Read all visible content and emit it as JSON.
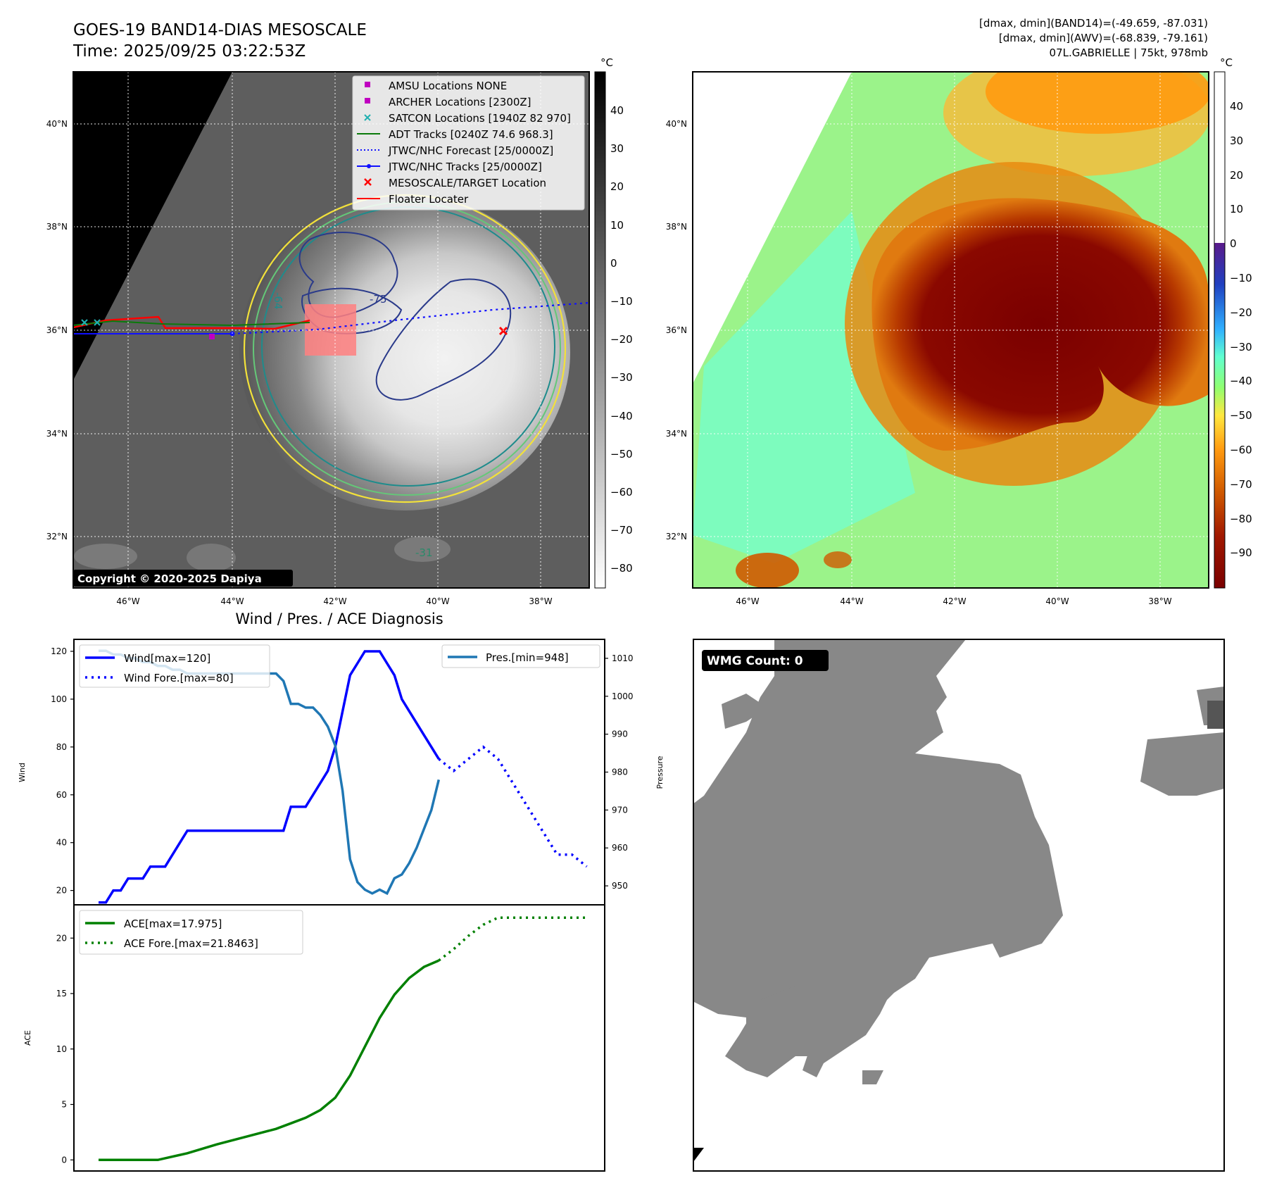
{
  "header": {
    "title_line1": "GOES-19 BAND14-DIAS MESOSCALE",
    "title_line2": "Time: 2025/09/25 03:22:53Z",
    "info_line1": "[dmax, dmin](BAND14)=(-49.659, -87.031)",
    "info_line2": "[dmax, dmin](AWV)=(-68.839, -79.161)",
    "info_line3": "07L.GABRIELLE | 75kt, 978mb"
  },
  "map": {
    "lat_labels": [
      "40°N",
      "38°N",
      "36°N",
      "34°N",
      "32°N"
    ],
    "lon_labels": [
      "46°W",
      "44°W",
      "42°W",
      "40°W",
      "38°W"
    ],
    "copyright": "Copyright © 2020-2025 Dapiya",
    "contour_labels": [
      "-64",
      "-75",
      "-31"
    ],
    "colorbar_unit": "°C",
    "colorbar1_ticks": [
      "40",
      "30",
      "20",
      "10",
      "0",
      "−10",
      "−20",
      "−30",
      "−40",
      "−50",
      "−60",
      "−70",
      "−80"
    ],
    "colorbar2_ticks": [
      "40",
      "30",
      "20",
      "10",
      "0",
      "−10",
      "−20",
      "−30",
      "−40",
      "−50",
      "−60",
      "−70",
      "−80",
      "−90"
    ],
    "legend": [
      {
        "label": "AMSU Locations NONE",
        "color": "#c000c0",
        "marker": "square"
      },
      {
        "label": "ARCHER Locations [2300Z]",
        "color": "#c000c0",
        "marker": "square"
      },
      {
        "label": "SATCON Locations [1940Z 82 970]",
        "color": "#20b0b0",
        "marker": "x"
      },
      {
        "label": "ADT Tracks [0240Z 74.6 968.3]",
        "color": "#0a7a0a",
        "marker": "line"
      },
      {
        "label": "JTWC/NHC Forecast [25/0000Z]",
        "color": "#1010ff",
        "marker": "dotted"
      },
      {
        "label": "JTWC/NHC Tracks [25/0000Z]",
        "color": "#1010ff",
        "marker": "line-dot"
      },
      {
        "label": "MESOSCALE/TARGET Location",
        "color": "#ff0000",
        "marker": "x"
      },
      {
        "label": "Floater Locater",
        "color": "#ff0000",
        "marker": "line"
      }
    ]
  },
  "diag": {
    "title": "Wind / Pres. / ACE Diagnosis",
    "wind_ylabel": "Wind",
    "pres_ylabel": "Pressure",
    "ace_ylabel": "ACE",
    "legend_wind": "Wind[max=120]",
    "legend_wind_fore": "Wind Fore.[max=80]",
    "legend_pres": "Pres.[min=948]",
    "legend_ace": "ACE[max=17.975]",
    "legend_ace_fore": "ACE Fore.[max=21.8463]",
    "wmg_label": "WMG Count: 0"
  },
  "chart_data": [
    {
      "type": "line",
      "title": "Wind / Pres. / ACE Diagnosis",
      "ylabel": "Wind",
      "ylim": [
        14,
        125
      ],
      "y_ticks": [
        20,
        40,
        60,
        80,
        100,
        120
      ],
      "xlim": [
        0,
        67
      ],
      "series": [
        {
          "name": "Wind[max=120]",
          "style": "solid",
          "color": "#0000ff",
          "x": [
            0,
            1,
            2,
            3,
            4,
            5,
            6,
            7,
            8,
            9,
            10,
            11,
            12,
            13,
            14,
            15,
            16,
            17,
            18,
            19,
            20,
            21,
            22,
            23,
            24,
            25,
            26,
            27,
            28,
            29,
            30,
            31,
            32,
            33,
            34,
            35,
            36,
            37,
            38,
            39,
            40,
            41,
            42,
            43,
            44,
            45,
            46
          ],
          "values": [
            15,
            15,
            20,
            20,
            25,
            25,
            25,
            30,
            30,
            30,
            35,
            40,
            45,
            45,
            45,
            45,
            45,
            45,
            45,
            45,
            45,
            45,
            45,
            45,
            45,
            45,
            55,
            55,
            55,
            60,
            65,
            70,
            80,
            95,
            110,
            115,
            120,
            120,
            120,
            115,
            110,
            100,
            95,
            90,
            85,
            80,
            75
          ]
        },
        {
          "name": "Wind Fore.[max=80]",
          "style": "dotted",
          "color": "#0000ff",
          "x": [
            46,
            48,
            50,
            52,
            54,
            56,
            58,
            60,
            62,
            64,
            66
          ],
          "values": [
            75,
            70,
            75,
            80,
            75,
            65,
            55,
            45,
            35,
            35,
            30
          ]
        },
        {
          "name": "Pres.[min=948]",
          "axis": "right",
          "style": "solid",
          "color": "#1f77b4",
          "ylim": [
            945,
            1015
          ],
          "y_ticks": [
            950,
            960,
            970,
            980,
            990,
            1000,
            1010
          ],
          "x": [
            0,
            1,
            2,
            3,
            4,
            5,
            6,
            7,
            8,
            9,
            10,
            11,
            12,
            13,
            14,
            15,
            16,
            17,
            18,
            19,
            20,
            21,
            22,
            23,
            24,
            25,
            26,
            27,
            28,
            29,
            30,
            31,
            32,
            33,
            34,
            35,
            36,
            37,
            38,
            39,
            40,
            41,
            42,
            43,
            44,
            45,
            46
          ],
          "values": [
            1012,
            1012,
            1011,
            1011,
            1010,
            1010,
            1009,
            1009,
            1008,
            1008,
            1007,
            1007,
            1006,
            1006,
            1006,
            1006,
            1006,
            1006,
            1006,
            1006,
            1006,
            1006,
            1006,
            1006,
            1006,
            1004,
            998,
            998,
            997,
            997,
            995,
            992,
            987,
            975,
            957,
            951,
            949,
            948,
            949,
            948,
            952,
            953,
            956,
            960,
            965,
            970,
            978
          ]
        }
      ]
    },
    {
      "type": "line",
      "ylabel": "ACE",
      "ylim": [
        -1,
        23
      ],
      "y_ticks": [
        0,
        5,
        10,
        15,
        20
      ],
      "xlim": [
        0,
        67
      ],
      "series": [
        {
          "name": "ACE[max=17.975]",
          "style": "solid",
          "color": "#008000",
          "x": [
            0,
            4,
            8,
            12,
            16,
            20,
            24,
            26,
            28,
            30,
            32,
            34,
            36,
            38,
            40,
            42,
            44,
            46
          ],
          "values": [
            0,
            0,
            0,
            0.6,
            1.4,
            2.1,
            2.8,
            3.3,
            3.8,
            4.5,
            5.6,
            7.6,
            10.2,
            12.8,
            14.9,
            16.4,
            17.4,
            17.975
          ]
        },
        {
          "name": "ACE Fore.[max=21.8463]",
          "style": "dotted",
          "color": "#008000",
          "x": [
            46,
            48,
            50,
            52,
            54,
            56,
            58,
            60,
            62,
            64,
            66
          ],
          "values": [
            17.975,
            19.0,
            20.2,
            21.2,
            21.8463,
            21.8463,
            21.8463,
            21.8463,
            21.8463,
            21.8463,
            21.8463
          ]
        }
      ]
    }
  ]
}
